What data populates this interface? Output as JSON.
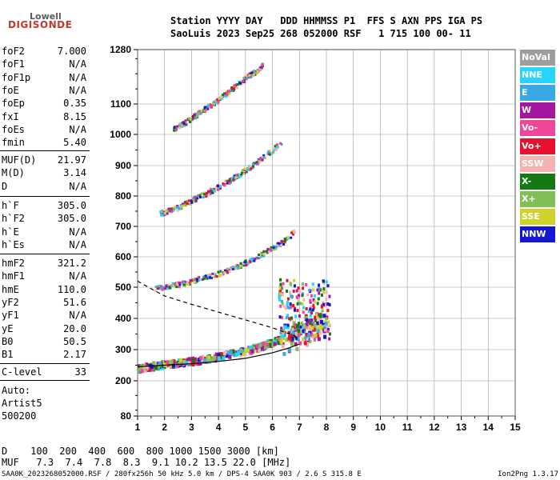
{
  "header": {
    "logo_top": "Lowell",
    "logo_main": "DIGISONDE",
    "line1": "Station YYYY DAY   DDD HHMMSS P1  FFS S AXN PPS IGA PS",
    "line2": "SaoLuis 2023 Sep25 268 052000 RSF   1 715 100 00- 11"
  },
  "params": [
    {
      "name": "foF2",
      "value": "7.000"
    },
    {
      "name": "foF1",
      "value": "N/A"
    },
    {
      "name": "foF1p",
      "value": "N/A"
    },
    {
      "name": "foE",
      "value": "N/A"
    },
    {
      "name": "foEp",
      "value": "0.35"
    },
    {
      "name": "fxI",
      "value": "8.15"
    },
    {
      "name": "foEs",
      "value": "N/A"
    },
    {
      "name": "fmin",
      "value": "5.40"
    },
    {
      "name": "MUF(D)",
      "value": "21.97"
    },
    {
      "name": "M(D)",
      "value": "3.14"
    },
    {
      "name": "D",
      "value": "N/A"
    },
    {
      "name": "h`F",
      "value": "305.0"
    },
    {
      "name": "h`F2",
      "value": "305.0"
    },
    {
      "name": "h`E",
      "value": "N/A"
    },
    {
      "name": "h`Es",
      "value": "N/A"
    },
    {
      "name": "hmF2",
      "value": "321.2"
    },
    {
      "name": "hmF1",
      "value": "N/A"
    },
    {
      "name": "hmE",
      "value": "110.0"
    },
    {
      "name": "yF2",
      "value": "51.6"
    },
    {
      "name": "yF1",
      "value": "N/A"
    },
    {
      "name": "yE",
      "value": "20.0"
    },
    {
      "name": "B0",
      "value": "50.5"
    },
    {
      "name": "B1",
      "value": "2.17"
    },
    {
      "name": "C-level",
      "value": "33"
    }
  ],
  "auto_info": [
    "Auto:",
    "Artist5",
    "500200"
  ],
  "legend": [
    {
      "label": "NoVal",
      "color": "#9e9e9e"
    },
    {
      "label": "NNE",
      "color": "#26d4ff"
    },
    {
      "label": "E",
      "color": "#39a9e6"
    },
    {
      "label": "W",
      "color": "#a4169e"
    },
    {
      "label": "Vo-",
      "color": "#f0469a"
    },
    {
      "label": "Vo+",
      "color": "#e8112d"
    },
    {
      "label": "SSW",
      "color": "#f4b3b3"
    },
    {
      "label": "X-",
      "color": "#137a13"
    },
    {
      "label": "X+",
      "color": "#7fbf55"
    },
    {
      "label": "SSE",
      "color": "#cfd22a"
    },
    {
      "label": "NNW",
      "color": "#1515d4"
    }
  ],
  "mufline": {
    "d_label": "D",
    "d_values": "100  200  400  600  800 1000 1500 3000 [km]",
    "muf_label": "MUF",
    "muf_values": "7.3  7.4  7.8  8.3  9.1 10.2 13.5 22.0 [MHz]"
  },
  "footer": {
    "left": "SAA0K_2023268052000.RSF / 280fx256h 50 kHz 5.0 km / DPS-4 SAA0K 903 / 2.6 S 315.8 E",
    "right": "Ion2Png 1.3.17"
  },
  "chart_data": {
    "type": "scatter",
    "x_ticks": [
      1,
      2,
      3,
      4,
      5,
      6,
      7,
      8,
      9,
      10,
      11,
      12,
      13,
      14,
      15
    ],
    "y_ticks": [
      80,
      200,
      300,
      400,
      500,
      600,
      700,
      800,
      900,
      1000,
      1100,
      1280
    ],
    "xlim": [
      1,
      15
    ],
    "ylim": [
      80,
      1280
    ],
    "grid": true,
    "legend_position": "right",
    "traces": [
      {
        "name": "O-trace 1",
        "color": "mixed",
        "points": [
          [
            1.0,
            245
          ],
          [
            1.5,
            252
          ],
          [
            2.0,
            258
          ],
          [
            2.5,
            263
          ],
          [
            3.0,
            268
          ],
          [
            3.5,
            275
          ],
          [
            4.0,
            283
          ],
          [
            4.5,
            292
          ],
          [
            5.0,
            302
          ],
          [
            5.5,
            315
          ],
          [
            6.0,
            330
          ],
          [
            6.5,
            345
          ],
          [
            7.0,
            360
          ],
          [
            7.5,
            370
          ],
          [
            8.0,
            380
          ]
        ]
      },
      {
        "name": "O-trace 2",
        "color": "mixed",
        "points": [
          [
            1.6,
            500
          ],
          [
            2.0,
            505
          ],
          [
            2.5,
            512
          ],
          [
            3.0,
            523
          ],
          [
            3.5,
            535
          ],
          [
            4.0,
            548
          ],
          [
            4.5,
            565
          ],
          [
            5.0,
            585
          ],
          [
            5.5,
            608
          ],
          [
            6.0,
            632
          ],
          [
            6.5,
            660
          ],
          [
            6.8,
            690
          ]
        ]
      },
      {
        "name": "O-trace 3",
        "color": "mixed",
        "points": [
          [
            1.8,
            745
          ],
          [
            2.5,
            765
          ],
          [
            3.0,
            790
          ],
          [
            3.5,
            810
          ],
          [
            4.0,
            835
          ],
          [
            4.5,
            860
          ],
          [
            5.0,
            890
          ],
          [
            5.5,
            920
          ],
          [
            6.0,
            955
          ],
          [
            6.3,
            975
          ]
        ]
      },
      {
        "name": "O-trace 4",
        "color": "mixed",
        "points": [
          [
            2.3,
            1020
          ],
          [
            2.8,
            1045
          ],
          [
            3.2,
            1070
          ],
          [
            3.6,
            1095
          ],
          [
            4.0,
            1120
          ],
          [
            4.5,
            1155
          ],
          [
            5.0,
            1190
          ],
          [
            5.5,
            1220
          ],
          [
            5.6,
            1230
          ]
        ]
      }
    ],
    "profile_curve": {
      "type": "solid",
      "points": [
        [
          1.0,
          245
        ],
        [
          2.0,
          250
        ],
        [
          3.0,
          255
        ],
        [
          4.0,
          262
        ],
        [
          5.0,
          272
        ],
        [
          6.0,
          290
        ],
        [
          6.6,
          305
        ],
        [
          7.0,
          318
        ]
      ]
    },
    "virtual_height_curve": {
      "type": "dashed",
      "points": [
        [
          1.0,
          520
        ],
        [
          1.5,
          495
        ],
        [
          2.0,
          472
        ],
        [
          3.0,
          445
        ],
        [
          4.0,
          420
        ],
        [
          5.0,
          395
        ],
        [
          6.0,
          370
        ],
        [
          6.8,
          345
        ],
        [
          7.0,
          330
        ]
      ]
    }
  }
}
